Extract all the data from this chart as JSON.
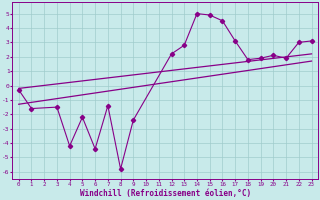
{
  "xlabel": "Windchill (Refroidissement éolien,°C)",
  "main_x": [
    0,
    1,
    3,
    4,
    5,
    6,
    7,
    8,
    9,
    12,
    13,
    14,
    15,
    16,
    17,
    18,
    19,
    20,
    21,
    22,
    23
  ],
  "main_y": [
    -0.3,
    -1.6,
    -1.5,
    -4.2,
    -2.2,
    -4.4,
    -1.4,
    -5.8,
    -2.4,
    2.2,
    2.8,
    5.0,
    4.9,
    4.5,
    3.1,
    1.8,
    1.9,
    2.1,
    1.9,
    3.0,
    3.1
  ],
  "trend1_x": [
    0,
    23
  ],
  "trend1_y": [
    -0.2,
    2.2
  ],
  "trend2_x": [
    0,
    23
  ],
  "trend2_y": [
    -1.3,
    1.7
  ],
  "ylim": [
    -6.5,
    5.8
  ],
  "xlim": [
    -0.5,
    23.5
  ],
  "yticks": [
    5,
    4,
    3,
    2,
    1,
    0,
    -1,
    -2,
    -3,
    -4,
    -5,
    -6
  ],
  "xticks": [
    0,
    1,
    2,
    3,
    4,
    5,
    6,
    7,
    8,
    9,
    10,
    11,
    12,
    13,
    14,
    15,
    16,
    17,
    18,
    19,
    20,
    21,
    22,
    23
  ],
  "line_color": "#880088",
  "bg_color": "#c8eaea",
  "grid_color": "#a0cccc",
  "spine_color": "#880088",
  "tick_color": "#880088",
  "xlabel_color": "#880088"
}
